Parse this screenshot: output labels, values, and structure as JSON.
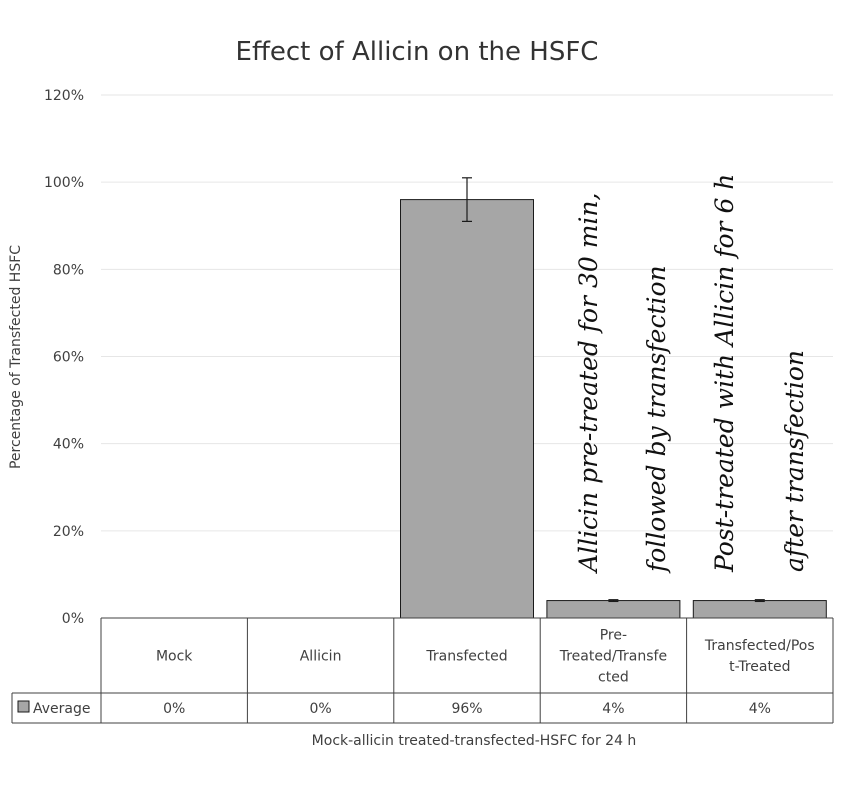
{
  "chart_data": {
    "type": "bar",
    "title": "Effect of Allicin on the HSFC",
    "ylabel": "Percentage of Transfected HSFC",
    "xlabel": "Mock-allicin treated-transfected-HSFC for 24 h",
    "categories": [
      "Mock",
      "Allicin",
      "Transfected",
      "Pre-Treated/Transfected",
      "Transfected/Post-Treated"
    ],
    "category_display": [
      [
        "Mock"
      ],
      [
        "Allicin"
      ],
      [
        "Transfected"
      ],
      [
        "Pre-",
        "Treated/Transfe",
        "cted"
      ],
      [
        "Transfected/Pos",
        "t-Treated"
      ]
    ],
    "series": [
      {
        "name": "Average",
        "values": [
          0,
          0,
          0.96,
          0.04,
          0.04
        ],
        "labels": [
          "0%",
          "0%",
          "96%",
          "4%",
          "4%"
        ],
        "errors": [
          0,
          0,
          0.05,
          0.002,
          0.002
        ],
        "color": "#a6a6a6"
      }
    ],
    "ylim": [
      0,
      1.2
    ],
    "yticks": [
      0,
      0.2,
      0.4,
      0.6,
      0.8,
      1.0,
      1.2
    ],
    "ytick_labels": [
      "0%",
      "20%",
      "40%",
      "60%",
      "80%",
      "100%",
      "120%"
    ],
    "grid": true,
    "legend": "data-table",
    "annotations": [
      {
        "lines": [
          "Allicin pre-treated for 30 min,",
          "followed by transfection"
        ],
        "category": 3
      },
      {
        "lines": [
          "Post-treated with Allicin for 6 h",
          "after transfection"
        ],
        "category": 4
      }
    ]
  }
}
